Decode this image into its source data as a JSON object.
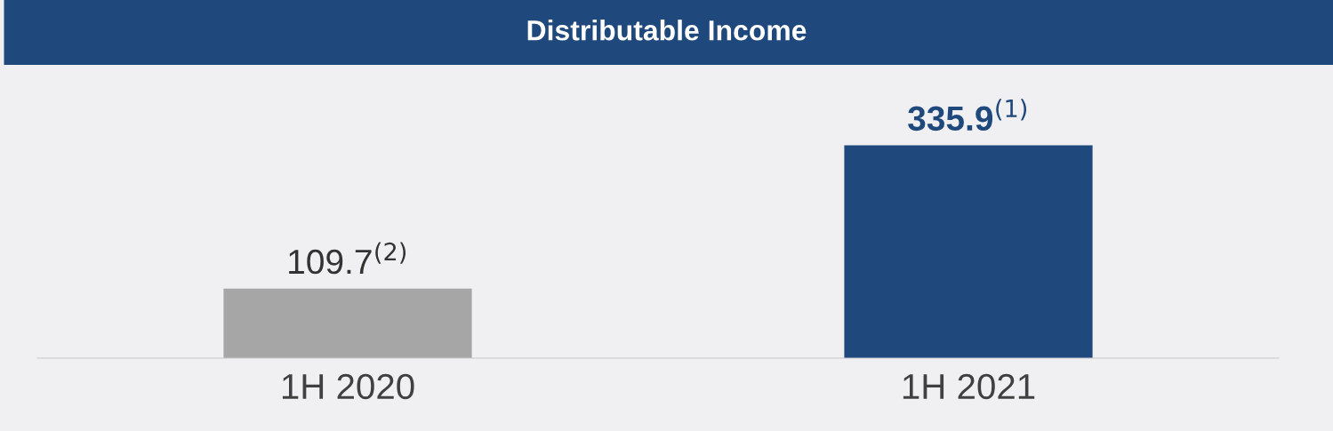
{
  "chart_data": {
    "type": "bar",
    "title": "Distributable Income",
    "categories": [
      "1H 2020",
      "1H 2021"
    ],
    "values": [
      109.7,
      335.9
    ],
    "colors": [
      "#a6a6a6",
      "#1f497d"
    ],
    "value_labels": [
      "109.7$^{(2)}$",
      "335.9$^{(1)}$"
    ],
    "tick_labels": "x",
    "grid": false,
    "legend": false
  }
}
